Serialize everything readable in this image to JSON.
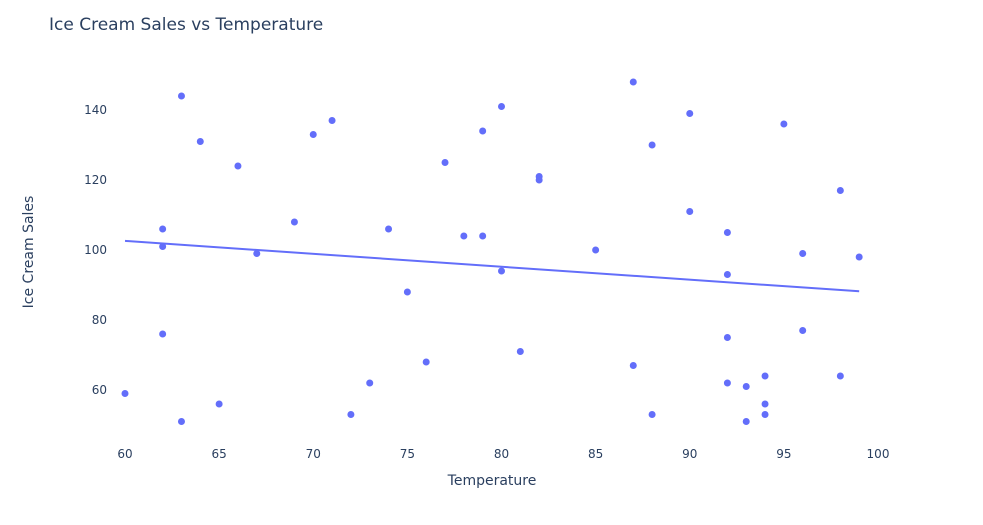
{
  "chart_data": {
    "type": "scatter",
    "title": "Ice Cream Sales vs Temperature",
    "xlabel": "Temperature",
    "ylabel": "Ice Cream Sales",
    "xlim": [
      57.5,
      103
    ],
    "ylim": [
      45,
      158
    ],
    "xticks": [
      60,
      65,
      70,
      75,
      80,
      85,
      90,
      95,
      100
    ],
    "yticks": [
      60,
      80,
      100,
      120,
      140
    ],
    "grid": false,
    "marker_color": "#636efa",
    "series": [
      {
        "points": [
          [
            60,
            59
          ],
          [
            62,
            106
          ],
          [
            62,
            101
          ],
          [
            62,
            76
          ],
          [
            63,
            144
          ],
          [
            63,
            51
          ],
          [
            64,
            131
          ],
          [
            65,
            56
          ],
          [
            66,
            124
          ],
          [
            67,
            99
          ],
          [
            69,
            108
          ],
          [
            70,
            133
          ],
          [
            71,
            137
          ],
          [
            72,
            53
          ],
          [
            73,
            62
          ],
          [
            74,
            106
          ],
          [
            75,
            88
          ],
          [
            76,
            68
          ],
          [
            77,
            125
          ],
          [
            78,
            104
          ],
          [
            79,
            134
          ],
          [
            79,
            104
          ],
          [
            80,
            141
          ],
          [
            80,
            94
          ],
          [
            81,
            71
          ],
          [
            82,
            121
          ],
          [
            82,
            120
          ],
          [
            85,
            100
          ],
          [
            87,
            148
          ],
          [
            87,
            67
          ],
          [
            88,
            130
          ],
          [
            88,
            53
          ],
          [
            90,
            139
          ],
          [
            90,
            111
          ],
          [
            92,
            105
          ],
          [
            92,
            93
          ],
          [
            92,
            75
          ],
          [
            92,
            62
          ],
          [
            93,
            61
          ],
          [
            93,
            51
          ],
          [
            94,
            64
          ],
          [
            94,
            56
          ],
          [
            94,
            53
          ],
          [
            95,
            136
          ],
          [
            96,
            99
          ],
          [
            96,
            77
          ],
          [
            98,
            117
          ],
          [
            98,
            64
          ],
          [
            99,
            98
          ]
        ]
      }
    ],
    "trendline": {
      "x": [
        60,
        99
      ],
      "y": [
        102.6,
        88.2
      ]
    }
  }
}
